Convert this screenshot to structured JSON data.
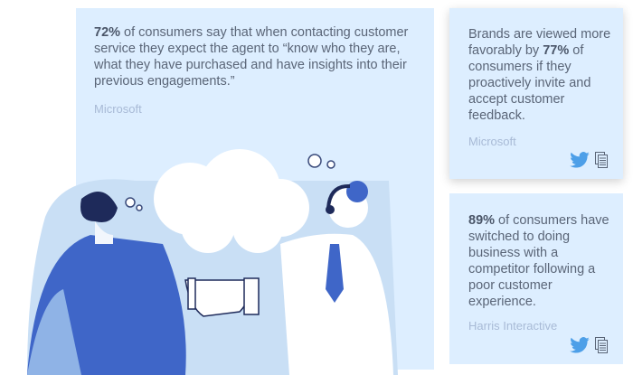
{
  "cards": [
    {
      "highlight": "72%",
      "text": " of consumers say that when contacting customer service they expect the agent to “know who they are, what they have purchased and have insights into their previous engagements.”",
      "source": "Microsoft"
    },
    {
      "prefix": "Brands are viewed more favorably by ",
      "highlight": "77%",
      "text": " of consumers if they proactively invite and accept customer feedback.",
      "source": "Microsoft"
    },
    {
      "highlight": "89%",
      "text": " of consumers have switched to doing business with a competitor following a poor customer experience.",
      "source": "Harris Interactive"
    }
  ],
  "colors": {
    "card_bg": "#ddeeff",
    "twitter": "#4d9fe8",
    "accent": "#3f66c8"
  }
}
